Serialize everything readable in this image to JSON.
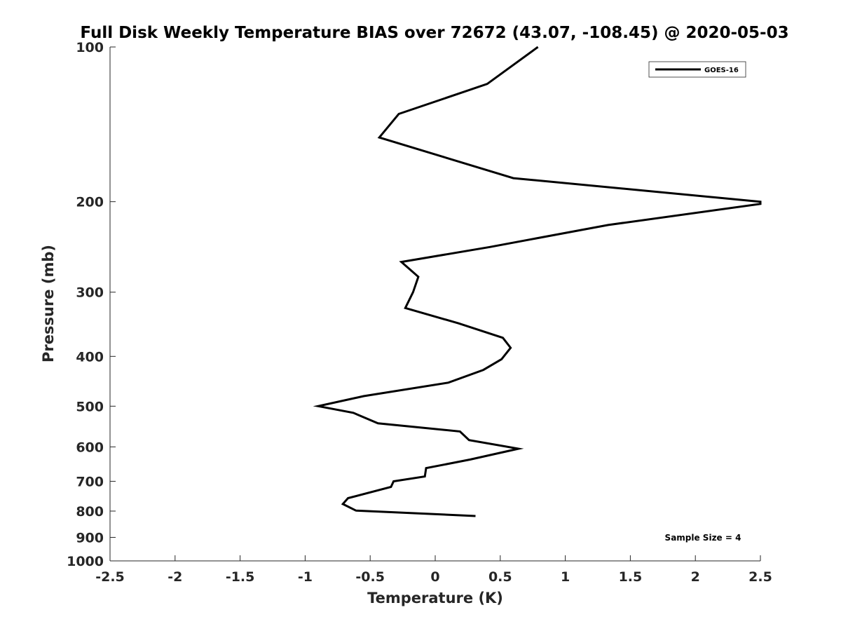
{
  "chart_data": {
    "type": "line",
    "title": "Full Disk Weekly Temperature BIAS over 72672 (43.07, -108.45) @ 2020-05-03",
    "xlabel": "Temperature (K)",
    "ylabel": "Pressure (mb)",
    "xlim": [
      -2.5,
      2.5
    ],
    "ylim": [
      100,
      1000
    ],
    "y_scale": "log",
    "y_reversed": true,
    "x_ticks": [
      -2.5,
      -2,
      -1.5,
      -1,
      -0.5,
      0,
      0.5,
      1,
      1.5,
      2,
      2.5
    ],
    "x_tick_labels": [
      "-2.5",
      "-2",
      "-1.5",
      "-1",
      "-0.5",
      "0",
      "0.5",
      "1",
      "1.5",
      "2",
      "2.5"
    ],
    "y_ticks": [
      100,
      200,
      300,
      400,
      500,
      600,
      700,
      800,
      900,
      1000
    ],
    "y_tick_labels": [
      "100",
      "200",
      "300",
      "400",
      "500",
      "600",
      "700",
      "800",
      "900",
      "1000"
    ],
    "grid": false,
    "legend": {
      "placement": "top-right"
    },
    "annotation": "Sample Size = 4",
    "series": [
      {
        "name": "GOES-16",
        "color": "#000000",
        "points": [
          [
            0.79,
            100
          ],
          [
            0.4,
            118
          ],
          [
            -0.28,
            135
          ],
          [
            -0.43,
            150
          ],
          [
            0.6,
            180
          ],
          [
            2.5,
            200
          ],
          [
            2.5,
            202
          ],
          [
            1.33,
            222
          ],
          [
            0.42,
            245
          ],
          [
            -0.26,
            262
          ],
          [
            -0.13,
            280
          ],
          [
            -0.17,
            300
          ],
          [
            -0.23,
            322
          ],
          [
            0.18,
            345
          ],
          [
            0.52,
            368
          ],
          [
            0.58,
            385
          ],
          [
            0.51,
            405
          ],
          [
            0.37,
            425
          ],
          [
            0.1,
            450
          ],
          [
            -0.55,
            478
          ],
          [
            -0.9,
            500
          ],
          [
            -0.63,
            515
          ],
          [
            -0.44,
            540
          ],
          [
            0.19,
            560
          ],
          [
            0.26,
            582
          ],
          [
            0.64,
            605
          ],
          [
            0.27,
            635
          ],
          [
            -0.07,
            660
          ],
          [
            -0.08,
            685
          ],
          [
            -0.32,
            700
          ],
          [
            -0.34,
            718
          ],
          [
            -0.67,
            755
          ],
          [
            -0.71,
            775
          ],
          [
            -0.61,
            798
          ],
          [
            0.31,
            818
          ]
        ]
      }
    ]
  }
}
